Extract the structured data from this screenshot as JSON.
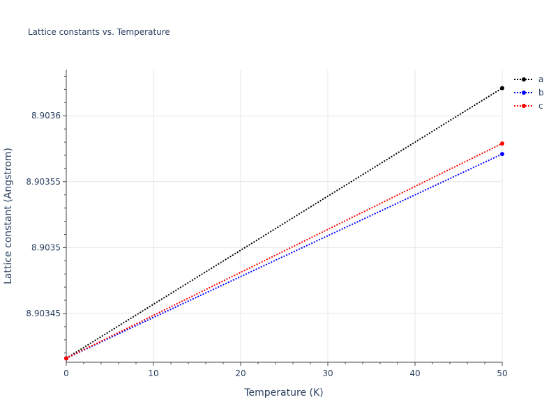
{
  "chart_data": {
    "type": "line",
    "title": "Lattice constants vs. Temperature",
    "xlabel": "Temperature (K)",
    "ylabel": "Lattice constant (Angstrom)",
    "xlim": [
      0,
      50
    ],
    "ylim": [
      8.903413,
      8.903635
    ],
    "x_ticks": [
      0,
      10,
      20,
      30,
      40,
      50
    ],
    "x_tick_labels": [
      "0",
      "10",
      "20",
      "30",
      "40",
      "50"
    ],
    "y_ticks": [
      8.90345,
      8.9035,
      8.90355,
      8.9036
    ],
    "y_tick_labels": [
      "8.90345",
      "8.9035",
      "8.90355",
      "8.9036"
    ],
    "grid": true,
    "legend_position": "top-right",
    "series": [
      {
        "name": "a",
        "color": "#000000",
        "line_style": "dotted",
        "x": [
          0,
          50
        ],
        "y": [
          8.903416,
          8.903621
        ]
      },
      {
        "name": "b",
        "color": "#0000ff",
        "line_style": "dotted",
        "x": [
          0,
          50
        ],
        "y": [
          8.903416,
          8.903571
        ]
      },
      {
        "name": "c",
        "color": "#ff0000",
        "line_style": "dotted",
        "x": [
          0,
          50
        ],
        "y": [
          8.903416,
          8.903579
        ]
      }
    ]
  }
}
